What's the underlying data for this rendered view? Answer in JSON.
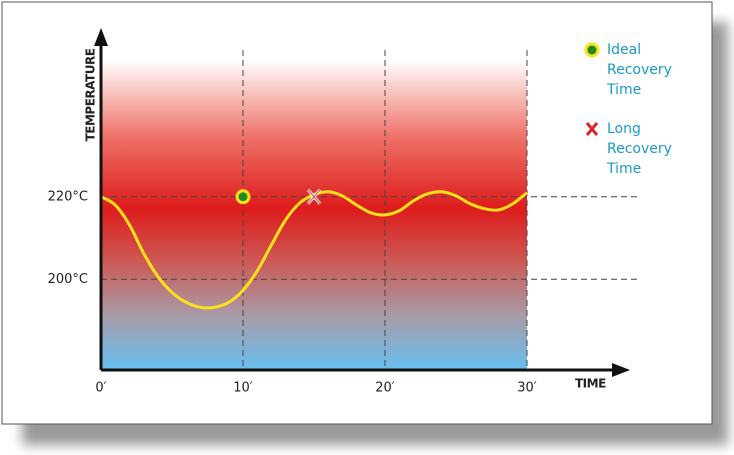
{
  "chart_data": {
    "type": "line",
    "x_label": "TIME",
    "y_label": "TEMPERATURE",
    "x": [
      0,
      1,
      2,
      3,
      4,
      5,
      6,
      7,
      8,
      9,
      10,
      11,
      12,
      13,
      14,
      15,
      16,
      17,
      18,
      19,
      20,
      21,
      22,
      23,
      24,
      25,
      26,
      27,
      28,
      29,
      30
    ],
    "series": [
      {
        "color": "#ffe11a",
        "values": [
          220,
          218,
          213.2,
          206.3,
          200.7,
          196.8,
          194.4,
          193.2,
          193.2,
          194.4,
          197.3,
          202,
          208.3,
          214.4,
          218.5,
          220.5,
          221.2,
          220.2,
          218,
          216.1,
          215.6,
          216.6,
          219,
          220.7,
          221.2,
          220.2,
          218.3,
          217.1,
          216.8,
          218.3,
          221
        ]
      }
    ],
    "xlim": [
      0,
      30
    ],
    "ylim": [
      178,
      258
    ],
    "xticks": [
      {
        "value": 0,
        "label": "0′"
      },
      {
        "value": 10,
        "label": "10′"
      },
      {
        "value": 20,
        "label": "20′"
      },
      {
        "value": 30,
        "label": "30′"
      }
    ],
    "yticks": [
      {
        "value": 200,
        "label": "200°C"
      },
      {
        "value": 220,
        "label": "220°C"
      }
    ],
    "grid": true,
    "markers": [
      {
        "shape": "circle",
        "x": 10,
        "y": 220,
        "color": "#1f8a1f",
        "label_lines": [
          "Ideal",
          "Recovery",
          "Time"
        ]
      },
      {
        "shape": "cross",
        "x": 15,
        "y": 220,
        "color": "#d9262b",
        "label_lines": [
          "Long",
          "Recovery",
          "Time"
        ]
      }
    ]
  }
}
